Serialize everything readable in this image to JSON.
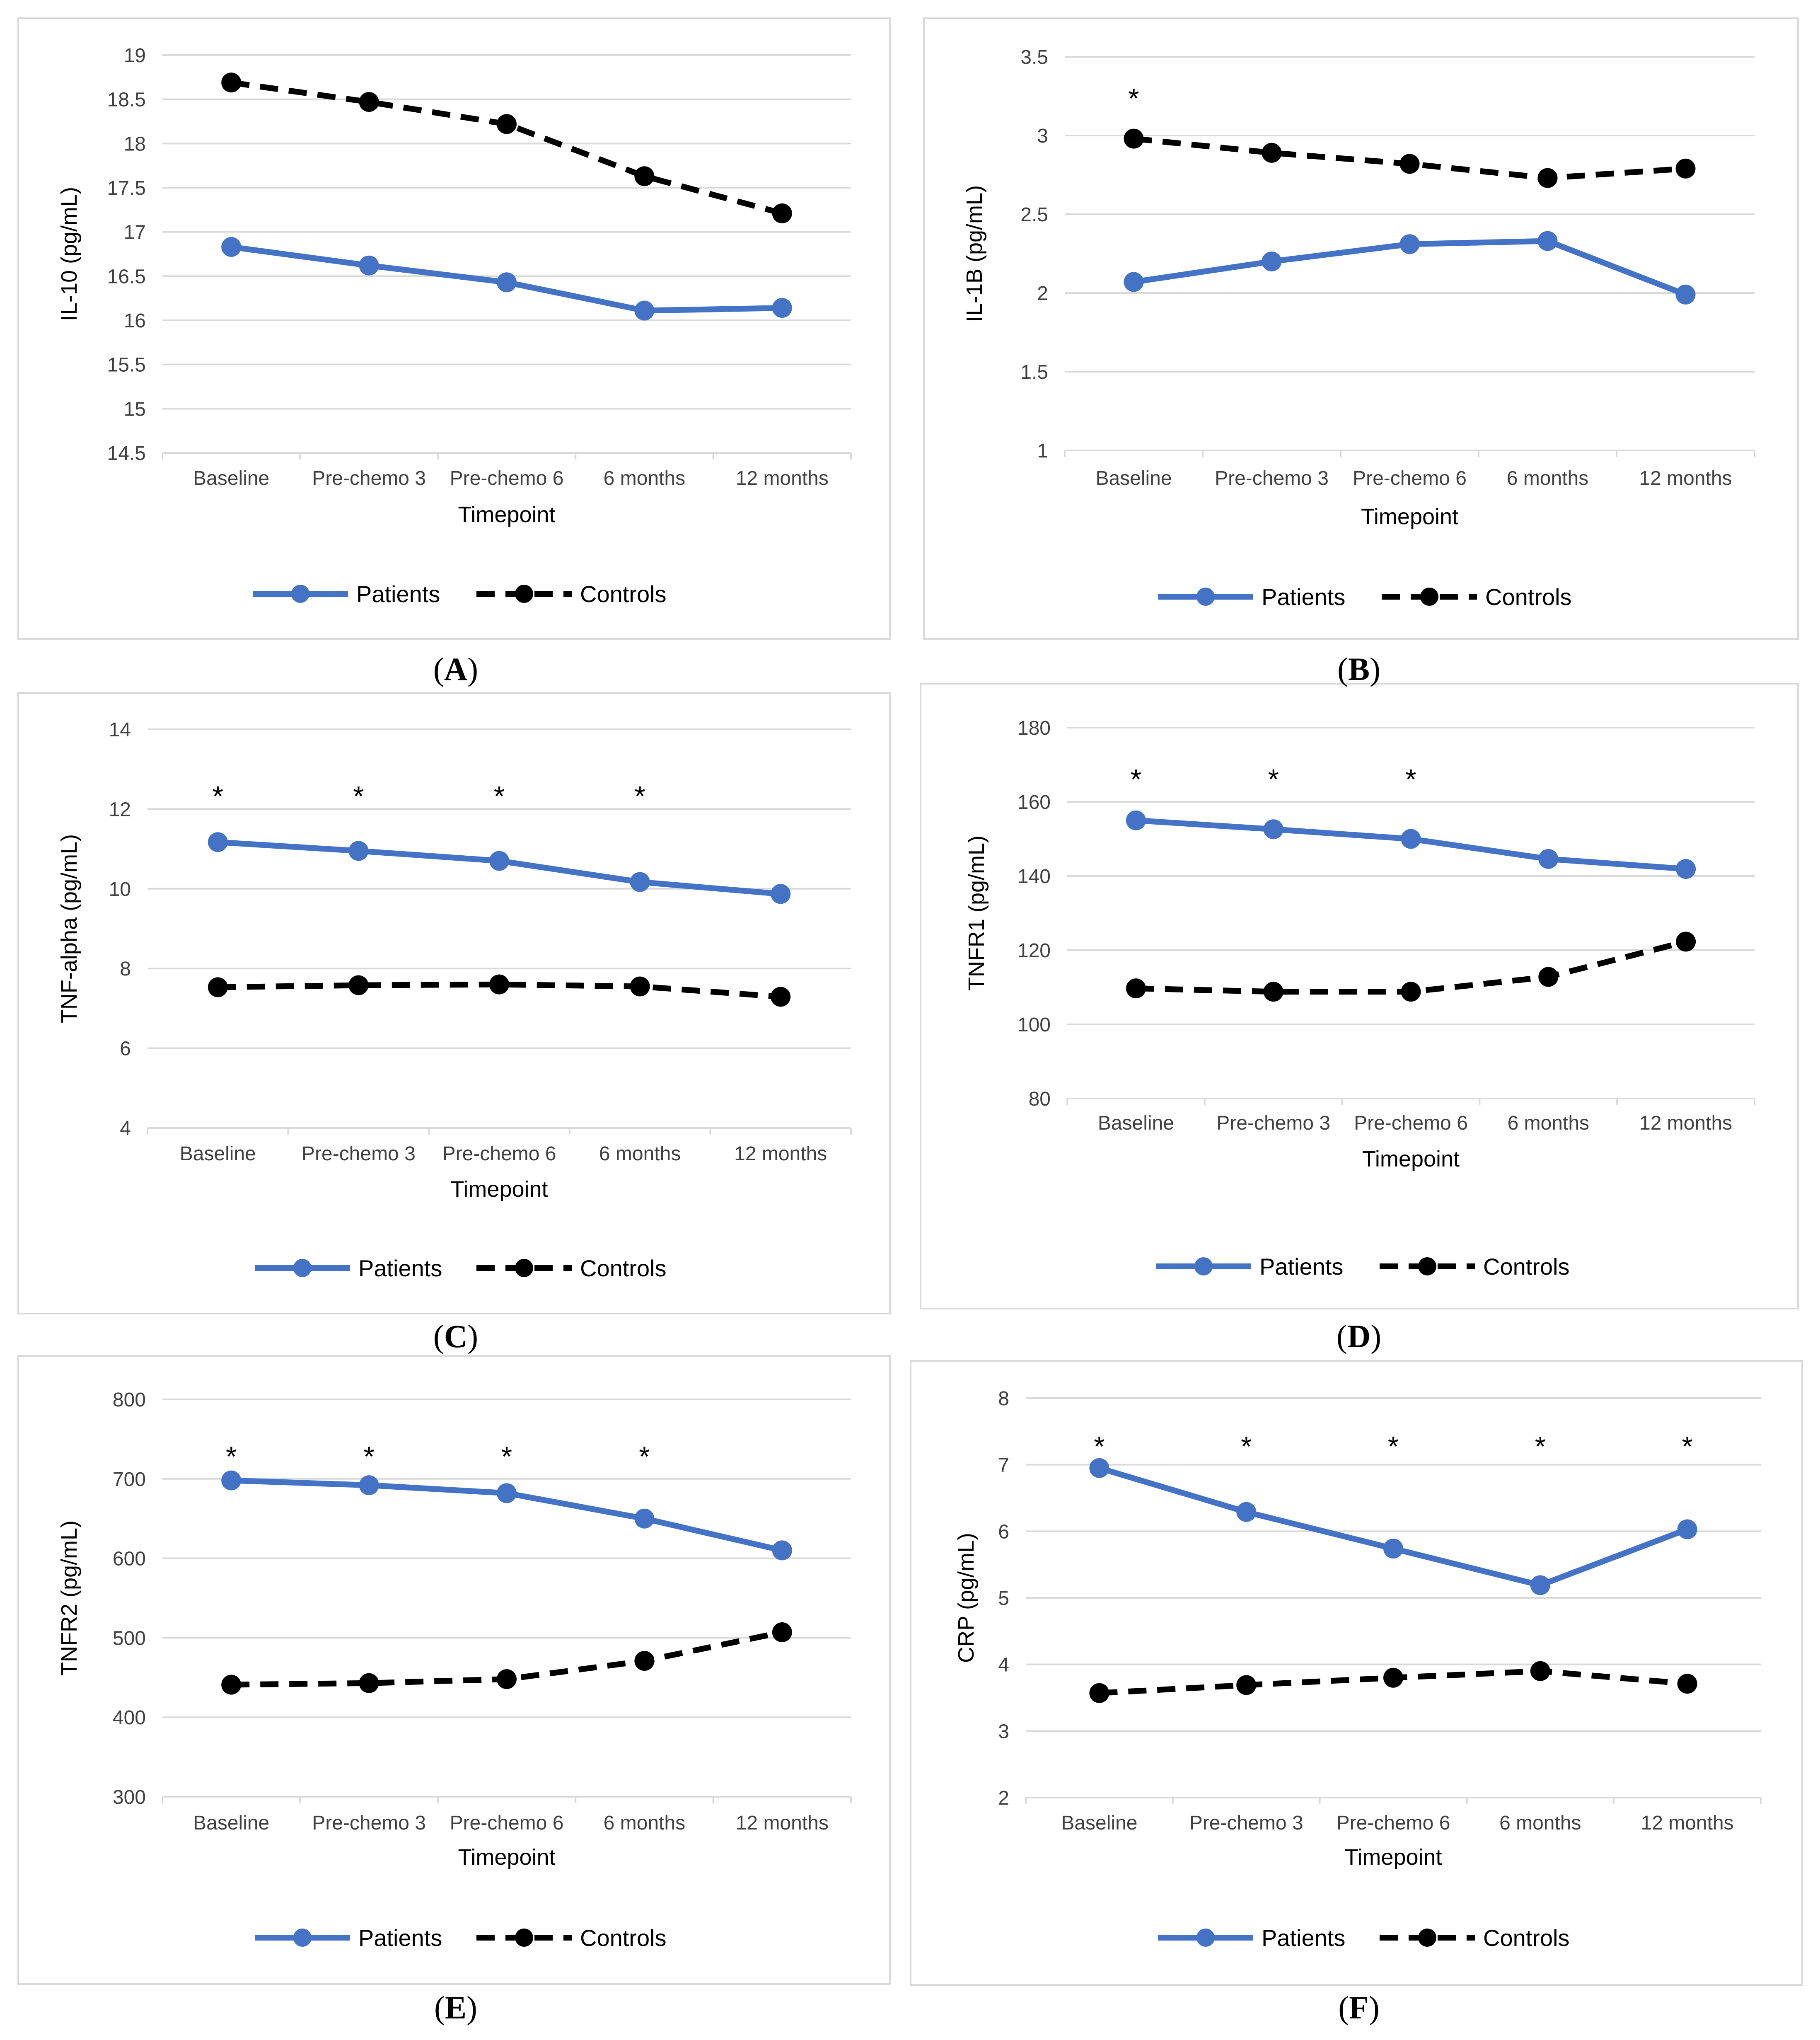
{
  "figure": {
    "letters": [
      "A",
      "B",
      "C",
      "D",
      "E",
      "F"
    ]
  },
  "chart_data": [
    {
      "panel": "A",
      "type": "line",
      "categories": [
        "Baseline",
        "Pre-chemo 3",
        "Pre-chemo 6",
        "6 months",
        "12 months"
      ],
      "series": [
        {
          "name": "Patients",
          "values": [
            16.83,
            16.62,
            16.43,
            16.11,
            16.14
          ],
          "color": "#4472c4",
          "style": "solid"
        },
        {
          "name": "Controls",
          "values": [
            18.69,
            18.47,
            18.22,
            17.63,
            17.21
          ],
          "color": "#000000",
          "style": "dashed"
        }
      ],
      "yticks": [
        "14.5",
        "15",
        "15.5",
        "16",
        "16.5",
        "17",
        "17.5",
        "18",
        "18.5",
        "19"
      ],
      "ylim": [
        14.5,
        19
      ],
      "ylabel": "IL-10 (pg/mL)",
      "xlabel": "Timepoint",
      "asterisks": [],
      "grid": true,
      "legend": "bottom"
    },
    {
      "panel": "B",
      "type": "line",
      "categories": [
        "Baseline",
        "Pre-chemo 3",
        "Pre-chemo 6",
        "6 months",
        "12 months"
      ],
      "series": [
        {
          "name": "Patients",
          "values": [
            2.07,
            2.2,
            2.31,
            2.33,
            1.99
          ],
          "color": "#4472c4",
          "style": "solid"
        },
        {
          "name": "Controls",
          "values": [
            2.98,
            2.89,
            2.82,
            2.73,
            2.79
          ],
          "color": "#000000",
          "style": "dashed"
        }
      ],
      "yticks": [
        "1",
        "1.5",
        "2",
        "2.5",
        "3",
        "3.5"
      ],
      "ylim": [
        1,
        3.5
      ],
      "ylabel": "IL-1B (pg/mL)",
      "xlabel": "Timepoint",
      "asterisks": [
        {
          "label": "*",
          "category": "Baseline",
          "value": 3.28
        }
      ],
      "grid": true,
      "legend": "bottom"
    },
    {
      "panel": "C",
      "type": "line",
      "categories": [
        "Baseline",
        "Pre-chemo 3",
        "Pre-chemo 6",
        "6 months",
        "12 months"
      ],
      "series": [
        {
          "name": "Patients",
          "values": [
            11.17,
            10.95,
            10.7,
            10.17,
            9.87
          ],
          "color": "#4472c4",
          "style": "solid"
        },
        {
          "name": "Controls",
          "values": [
            7.53,
            7.58,
            7.6,
            7.55,
            7.29
          ],
          "color": "#000000",
          "style": "dashed"
        }
      ],
      "yticks": [
        "4",
        "6",
        "8",
        "10",
        "12",
        "14"
      ],
      "ylim": [
        4,
        14
      ],
      "ylabel": "TNF-alpha (pg/mL)",
      "xlabel": "Timepoint",
      "asterisks": [
        {
          "label": "*",
          "category": "Baseline",
          "value": 12.5
        },
        {
          "label": "*",
          "category": "Pre-chemo 3",
          "value": 12.5
        },
        {
          "label": "*",
          "category": "Pre-chemo 6",
          "value": 12.5
        },
        {
          "label": "*",
          "category": "6 months",
          "value": 12.5
        }
      ],
      "grid": true,
      "legend": "bottom"
    },
    {
      "panel": "D",
      "type": "line",
      "categories": [
        "Baseline",
        "Pre-chemo 3",
        "Pre-chemo 6",
        "6 months",
        "12 months"
      ],
      "series": [
        {
          "name": "Patients",
          "values": [
            155,
            152.6,
            150,
            144.6,
            141.9
          ],
          "color": "#4472c4",
          "style": "solid"
        },
        {
          "name": "Controls",
          "values": [
            109.7,
            108.8,
            108.8,
            112.8,
            122.3
          ],
          "color": "#000000",
          "style": "dashed"
        }
      ],
      "yticks": [
        "80",
        "100",
        "120",
        "140",
        "160",
        "180"
      ],
      "ylim": [
        80,
        180
      ],
      "ylabel": "TNFR1 (pg/mL)",
      "xlabel": "Timepoint",
      "asterisks": [
        {
          "label": "*",
          "category": "Baseline",
          "value": 168
        },
        {
          "label": "*",
          "category": "Pre-chemo 3",
          "value": 168
        },
        {
          "label": "*",
          "category": "Pre-chemo 6",
          "value": 168
        }
      ],
      "grid": true,
      "legend": "bottom"
    },
    {
      "panel": "E",
      "type": "line",
      "categories": [
        "Baseline",
        "Pre-chemo 3",
        "Pre-chemo 6",
        "6 months",
        "12 months"
      ],
      "series": [
        {
          "name": "Patients",
          "values": [
            698,
            692,
            682,
            650,
            610
          ],
          "color": "#4472c4",
          "style": "solid"
        },
        {
          "name": "Controls",
          "values": [
            441,
            443,
            448,
            471,
            507
          ],
          "color": "#000000",
          "style": "dashed"
        }
      ],
      "yticks": [
        "300",
        "400",
        "500",
        "600",
        "700",
        "800"
      ],
      "ylim": [
        300,
        800
      ],
      "ylabel": "TNFR2 (pg/mL)",
      "xlabel": "Timepoint",
      "asterisks": [
        {
          "label": "*",
          "category": "Baseline",
          "value": 737
        },
        {
          "label": "*",
          "category": "Pre-chemo 3",
          "value": 737
        },
        {
          "label": "*",
          "category": "Pre-chemo 6",
          "value": 737
        },
        {
          "label": "*",
          "category": "6 months",
          "value": 737
        }
      ],
      "grid": true,
      "legend": "bottom"
    },
    {
      "panel": "F",
      "type": "line",
      "categories": [
        "Baseline",
        "Pre-chemo 3",
        "Pre-chemo 6",
        "6 months",
        "12 months"
      ],
      "series": [
        {
          "name": "Patients",
          "values": [
            6.95,
            6.29,
            5.74,
            5.19,
            6.03
          ],
          "color": "#4472c4",
          "style": "solid"
        },
        {
          "name": "Controls",
          "values": [
            3.57,
            3.69,
            3.8,
            3.9,
            3.71
          ],
          "color": "#000000",
          "style": "dashed"
        }
      ],
      "yticks": [
        "2",
        "3",
        "4",
        "5",
        "6",
        "7",
        "8"
      ],
      "ylim": [
        2,
        8
      ],
      "ylabel": "CRP (pg/mL)",
      "xlabel": "Timepoint",
      "asterisks": [
        {
          "label": "*",
          "category": "Baseline",
          "value": 7.38
        },
        {
          "label": "*",
          "category": "Pre-chemo 3",
          "value": 7.38
        },
        {
          "label": "*",
          "category": "Pre-chemo 6",
          "value": 7.38
        },
        {
          "label": "*",
          "category": "6 months",
          "value": 7.38
        },
        {
          "label": "*",
          "category": "12 months",
          "value": 7.38
        }
      ],
      "grid": true,
      "legend": "bottom"
    }
  ]
}
